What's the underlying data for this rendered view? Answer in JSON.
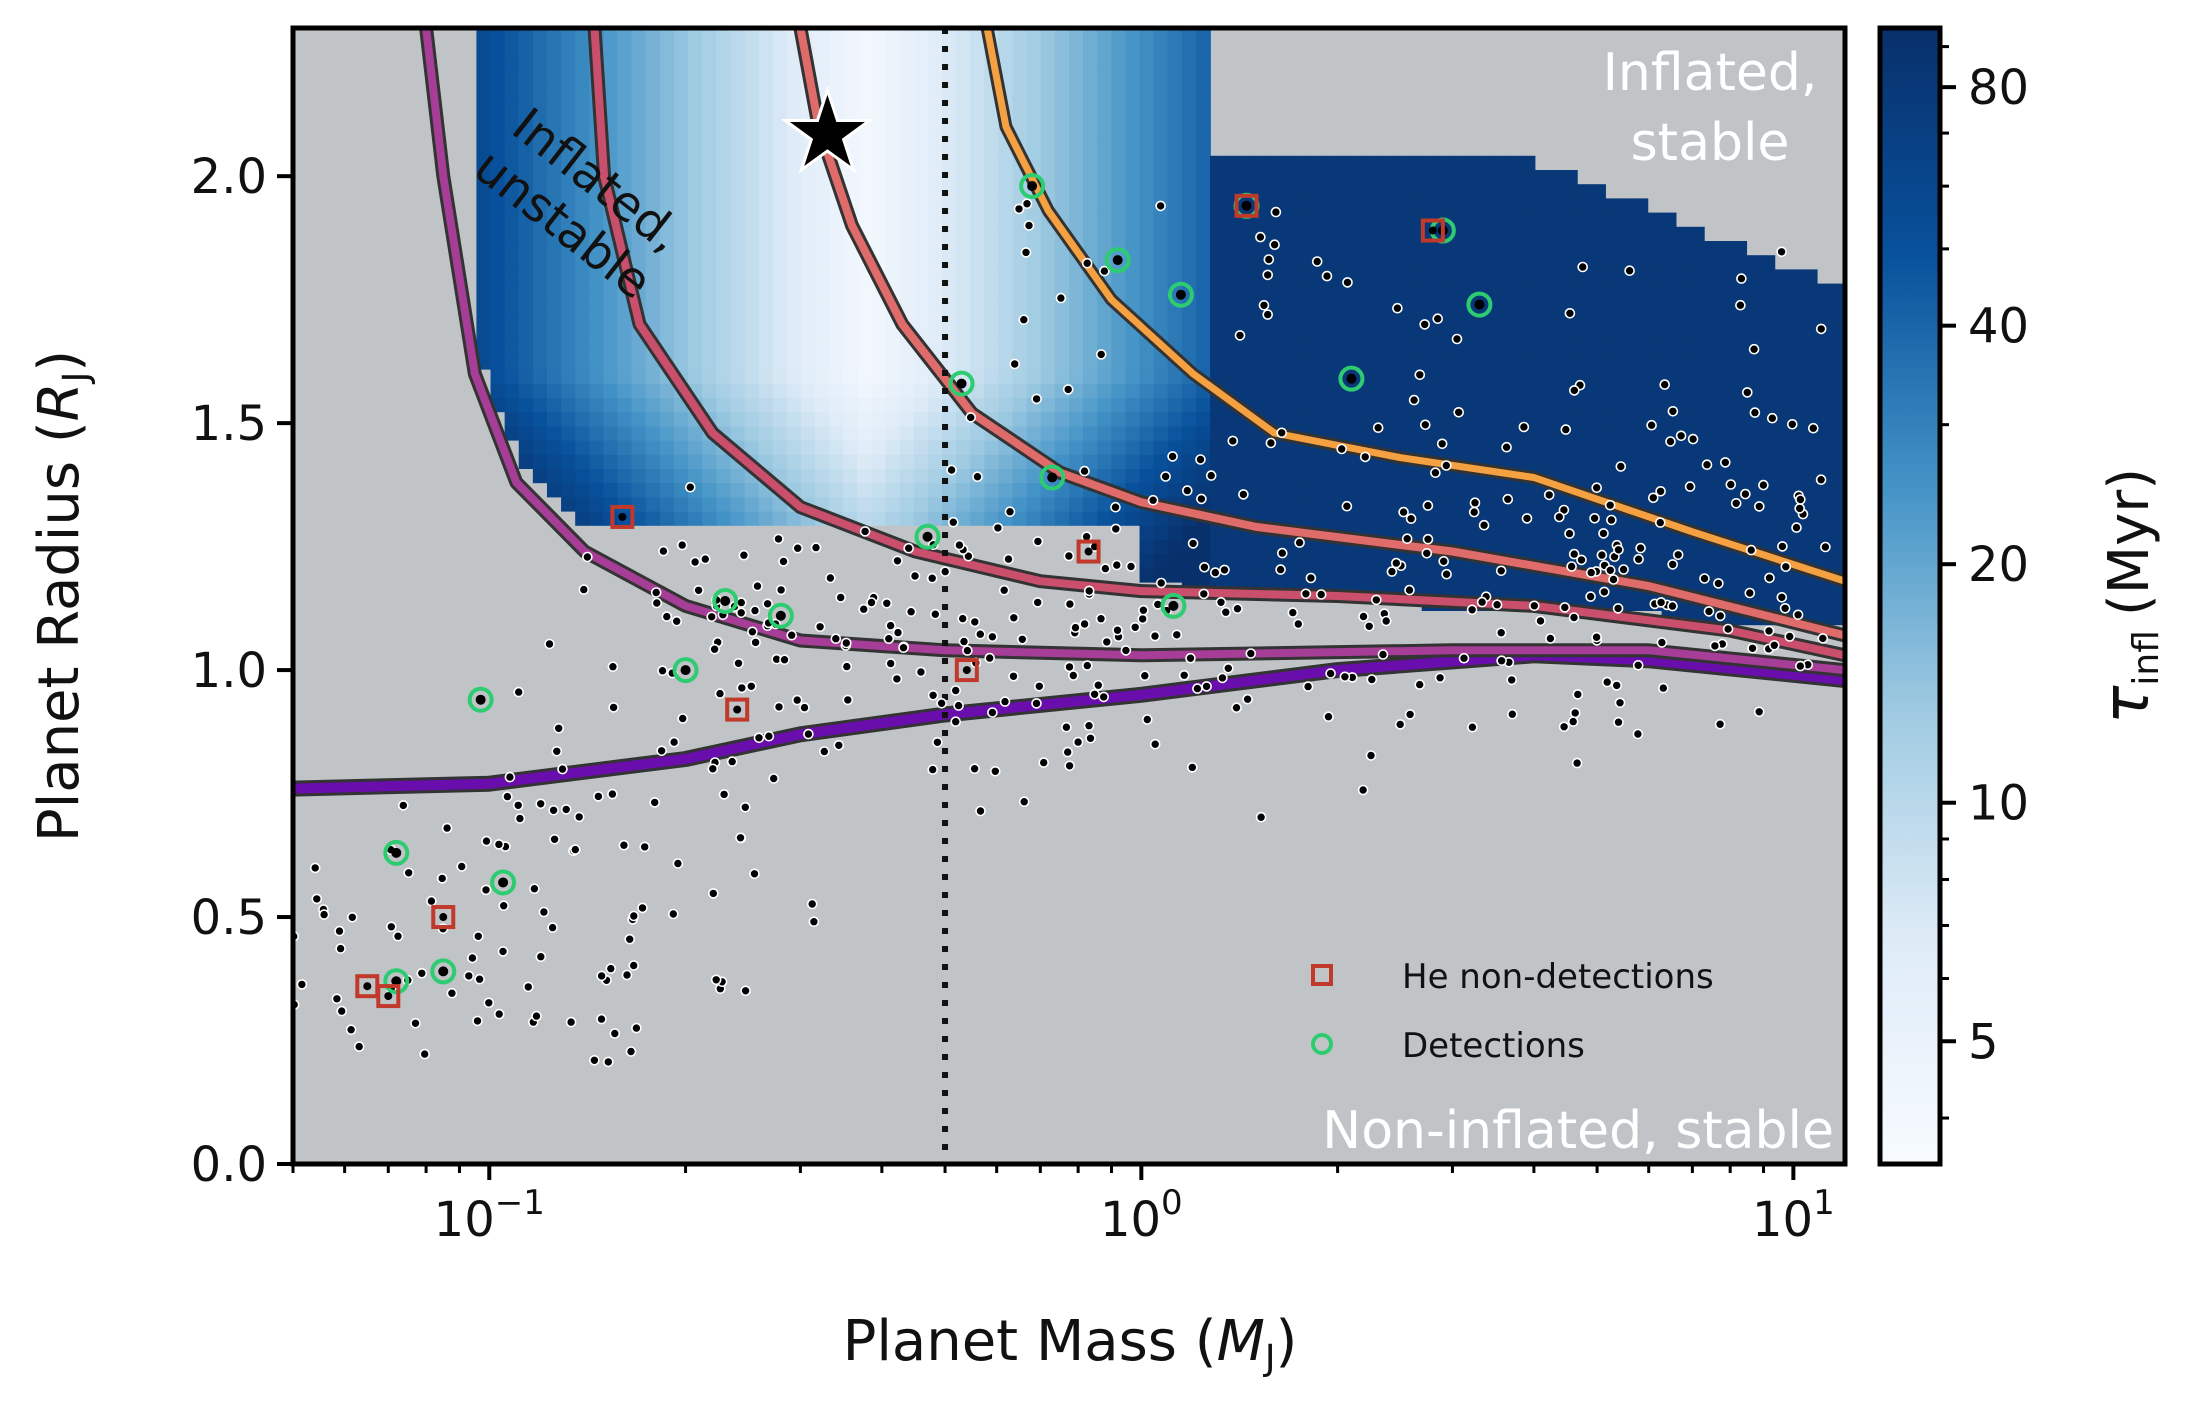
{
  "chart_data": {
    "type": "scatter",
    "xlabel": "Planet Mass (M_J)",
    "xlabel_main": "Planet Mass (",
    "xlabel_sym": "M",
    "xlabel_sub": "J",
    "xlabel_close": ")",
    "ylabel": "Planet Radius (R_J)",
    "ylabel_main": "Planet Radius (",
    "ylabel_sym": "R",
    "ylabel_sub": "J",
    "ylabel_close": ")",
    "x_scale": "log",
    "xlim": [
      0.05,
      12
    ],
    "ylim": [
      0.0,
      2.3
    ],
    "x_ticks": [
      {
        "value": 0.1,
        "base": "10",
        "exp": "−1"
      },
      {
        "value": 1,
        "base": "10",
        "exp": "0"
      },
      {
        "value": 10,
        "base": "10",
        "exp": "1"
      }
    ],
    "y_ticks": [
      "0.0",
      "0.5",
      "1.0",
      "1.5",
      "2.0"
    ],
    "vline_x": 0.5,
    "grid": false,
    "legend_position": "lower-right",
    "legend": [
      {
        "label": "He non-detections",
        "marker": "square",
        "color": "#c0392b"
      },
      {
        "label": "Detections",
        "marker": "circle",
        "color": "#2ecc71"
      }
    ],
    "annotations": {
      "inflated_unstable": "Inflated,\nunstable",
      "inflated_unstable_l1": "Inflated,",
      "inflated_unstable_l2": "unstable",
      "inflated_stable_l1": "Inflated,",
      "inflated_stable_l2": "stable",
      "non_inflated": "Non-inflated, stable"
    },
    "star_marker": {
      "x": 0.33,
      "y": 2.09
    },
    "colorbar": {
      "label": "τ_infl (Myr)",
      "label_sym": "τ",
      "label_sub": "infl",
      "label_unit": "(Myr)",
      "scale": "log",
      "range": [
        3.5,
        95
      ],
      "ticks": [
        5,
        10,
        20,
        40,
        80
      ],
      "cmap": "Blues"
    },
    "curves": [
      {
        "color": "#6a0dad",
        "width": 10,
        "points": [
          [
            0.05,
            0.76
          ],
          [
            0.1,
            0.77
          ],
          [
            0.2,
            0.82
          ],
          [
            0.3,
            0.87
          ],
          [
            0.5,
            0.91
          ],
          [
            1,
            0.95
          ],
          [
            2,
            1.0
          ],
          [
            4,
            1.03
          ],
          [
            6,
            1.02
          ],
          [
            12,
            0.98
          ]
        ]
      },
      {
        "color": "#a63d97",
        "width": 8,
        "points": [
          [
            0.08,
            2.3
          ],
          [
            0.085,
            2.0
          ],
          [
            0.095,
            1.6
          ],
          [
            0.11,
            1.38
          ],
          [
            0.14,
            1.24
          ],
          [
            0.2,
            1.13
          ],
          [
            0.3,
            1.06
          ],
          [
            0.5,
            1.04
          ],
          [
            1,
            1.03
          ],
          [
            3,
            1.04
          ],
          [
            6,
            1.04
          ],
          [
            12,
            1.0
          ]
        ]
      },
      {
        "color": "#c94f6d",
        "width": 8,
        "points": [
          [
            0.145,
            2.3
          ],
          [
            0.15,
            2.0
          ],
          [
            0.17,
            1.7
          ],
          [
            0.22,
            1.48
          ],
          [
            0.3,
            1.33
          ],
          [
            0.45,
            1.24
          ],
          [
            0.7,
            1.18
          ],
          [
            1,
            1.16
          ],
          [
            2,
            1.15
          ],
          [
            4,
            1.13
          ],
          [
            8,
            1.08
          ],
          [
            12,
            1.03
          ]
        ]
      },
      {
        "color": "#e06b6b",
        "width": 8,
        "points": [
          [
            0.3,
            2.3
          ],
          [
            0.32,
            2.1
          ],
          [
            0.36,
            1.9
          ],
          [
            0.43,
            1.7
          ],
          [
            0.55,
            1.52
          ],
          [
            0.75,
            1.4
          ],
          [
            1,
            1.34
          ],
          [
            1.5,
            1.29
          ],
          [
            3,
            1.24
          ],
          [
            6,
            1.17
          ],
          [
            12,
            1.07
          ]
        ]
      },
      {
        "color": "#f5a142",
        "width": 7,
        "points": [
          [
            0.58,
            2.3
          ],
          [
            0.62,
            2.1
          ],
          [
            0.72,
            1.93
          ],
          [
            0.9,
            1.75
          ],
          [
            1.2,
            1.6
          ],
          [
            1.6,
            1.48
          ],
          [
            2.5,
            1.43
          ],
          [
            4,
            1.39
          ],
          [
            7,
            1.28
          ],
          [
            12,
            1.18
          ]
        ]
      }
    ],
    "he_non_detections": [
      [
        0.16,
        1.31
      ],
      [
        0.24,
        0.92
      ],
      [
        0.54,
        1.0
      ],
      [
        0.83,
        1.24
      ],
      [
        1.45,
        1.94
      ],
      [
        2.8,
        1.89
      ],
      [
        0.085,
        0.5
      ],
      [
        0.065,
        0.36
      ],
      [
        0.07,
        0.34
      ]
    ],
    "detections": [
      [
        0.68,
        1.98
      ],
      [
        0.92,
        1.83
      ],
      [
        1.15,
        1.76
      ],
      [
        2.1,
        1.59
      ],
      [
        2.9,
        1.89
      ],
      [
        3.3,
        1.74
      ],
      [
        1.45,
        1.94
      ],
      [
        0.53,
        1.58
      ],
      [
        0.73,
        1.39
      ],
      [
        0.47,
        1.27
      ],
      [
        1.12,
        1.13
      ],
      [
        0.23,
        1.14
      ],
      [
        0.28,
        1.11
      ],
      [
        0.2,
        1.0
      ],
      [
        0.097,
        0.94
      ],
      [
        0.072,
        0.63
      ],
      [
        0.105,
        0.57
      ],
      [
        0.085,
        0.39
      ],
      [
        0.072,
        0.37
      ]
    ],
    "population_count": 520
  }
}
